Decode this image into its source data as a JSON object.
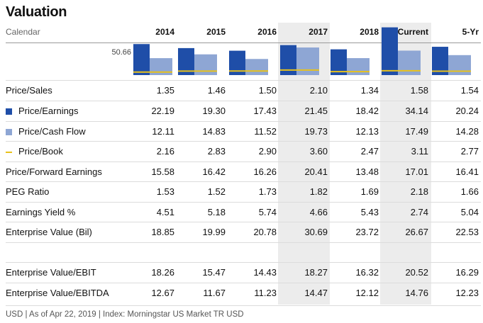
{
  "title": "Valuation",
  "calendar_label": "Calendar",
  "max_label": "50.66",
  "footer": "USD | As of Apr 22, 2019 | Index: Morningstar US Market TR USD",
  "colors": {
    "pe": "#1f4ea8",
    "pcf": "#8ea6d4",
    "pb": "#e8c21b",
    "shade": "#ececec"
  },
  "chart_data": {
    "type": "bar",
    "categories": [
      "2014",
      "2015",
      "2016",
      "2017",
      "2018",
      "Current",
      "5-Yr"
    ],
    "ylim": [
      0,
      50.66
    ],
    "series": [
      {
        "name": "Price/Earnings",
        "values": [
          22.19,
          19.3,
          17.43,
          21.45,
          18.42,
          34.14,
          20.24
        ]
      },
      {
        "name": "Price/Cash Flow",
        "values": [
          12.11,
          14.83,
          11.52,
          19.73,
          12.13,
          17.49,
          14.28
        ]
      },
      {
        "name": "Price/Book",
        "values": [
          2.16,
          2.83,
          2.9,
          3.6,
          2.47,
          3.11,
          2.77
        ]
      }
    ]
  },
  "rows": [
    {
      "label": "Price/Sales",
      "values": [
        "1.35",
        "1.46",
        "1.50",
        "2.10",
        "1.34",
        "1.58",
        "1.54"
      ]
    },
    {
      "label": "Price/Earnings",
      "values": [
        "22.19",
        "19.30",
        "17.43",
        "21.45",
        "18.42",
        "34.14",
        "20.24"
      ]
    },
    {
      "label": "Price/Cash Flow",
      "values": [
        "12.11",
        "14.83",
        "11.52",
        "19.73",
        "12.13",
        "17.49",
        "14.28"
      ]
    },
    {
      "label": "Price/Book",
      "values": [
        "2.16",
        "2.83",
        "2.90",
        "3.60",
        "2.47",
        "3.11",
        "2.77"
      ]
    },
    {
      "label": "Price/Forward Earnings",
      "values": [
        "15.58",
        "16.42",
        "16.26",
        "20.41",
        "13.48",
        "17.01",
        "16.41"
      ]
    },
    {
      "label": "PEG Ratio",
      "values": [
        "1.53",
        "1.52",
        "1.73",
        "1.82",
        "1.69",
        "2.18",
        "1.66"
      ]
    },
    {
      "label": "Earnings Yield %",
      "values": [
        "4.51",
        "5.18",
        "5.74",
        "4.66",
        "5.43",
        "2.74",
        "5.04"
      ]
    },
    {
      "label": "Enterprise Value (Bil)",
      "values": [
        "18.85",
        "19.99",
        "20.78",
        "30.69",
        "23.72",
        "26.67",
        "22.53"
      ]
    },
    {
      "label": "Enterprise Value/EBIT",
      "values": [
        "18.26",
        "15.47",
        "14.43",
        "18.27",
        "16.32",
        "20.52",
        "16.29"
      ]
    },
    {
      "label": "Enterprise Value/EBITDA",
      "values": [
        "12.67",
        "11.67",
        "11.23",
        "14.47",
        "12.12",
        "14.76",
        "12.23"
      ]
    }
  ]
}
